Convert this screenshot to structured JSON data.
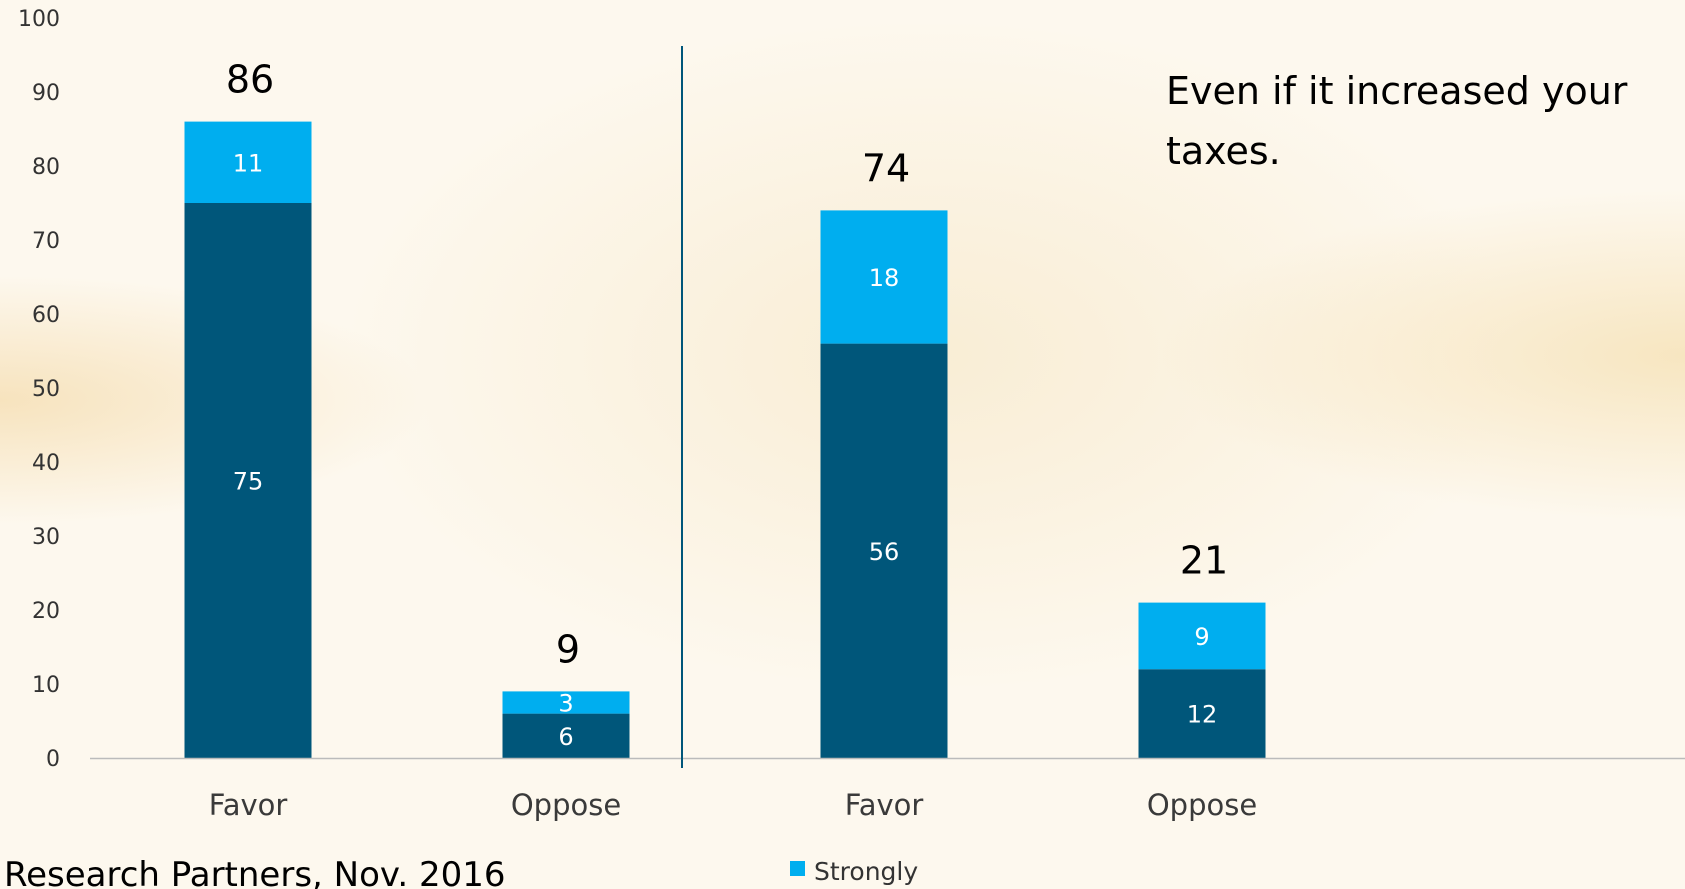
{
  "chart_data": {
    "type": "bar",
    "stacked": true,
    "categories": [
      "Favor",
      "Oppose",
      "Favor",
      "Oppose"
    ],
    "series": [
      {
        "values": [
          75,
          6,
          56,
          12
        ],
        "color": "#00567a",
        "show_labels": true
      },
      {
        "name": "Strongly",
        "values": [
          11,
          3,
          18,
          9
        ],
        "color": "#00aeef",
        "show_labels": true
      }
    ],
    "totals": [
      86,
      9,
      74,
      21
    ],
    "ylim": [
      0,
      100
    ],
    "yticks": [
      0,
      10,
      20,
      30,
      40,
      50,
      60,
      70,
      80,
      90,
      100
    ],
    "grid": false,
    "annotation_lines": [
      "Even if it increased your",
      "taxes."
    ],
    "legend_position": "bottom-center",
    "group_divider": "between bars 2 and 3"
  },
  "source_text": "Research Partners, Nov. 2016",
  "colors": {
    "axis": "#bbbbbb",
    "divider": "#00567a"
  }
}
